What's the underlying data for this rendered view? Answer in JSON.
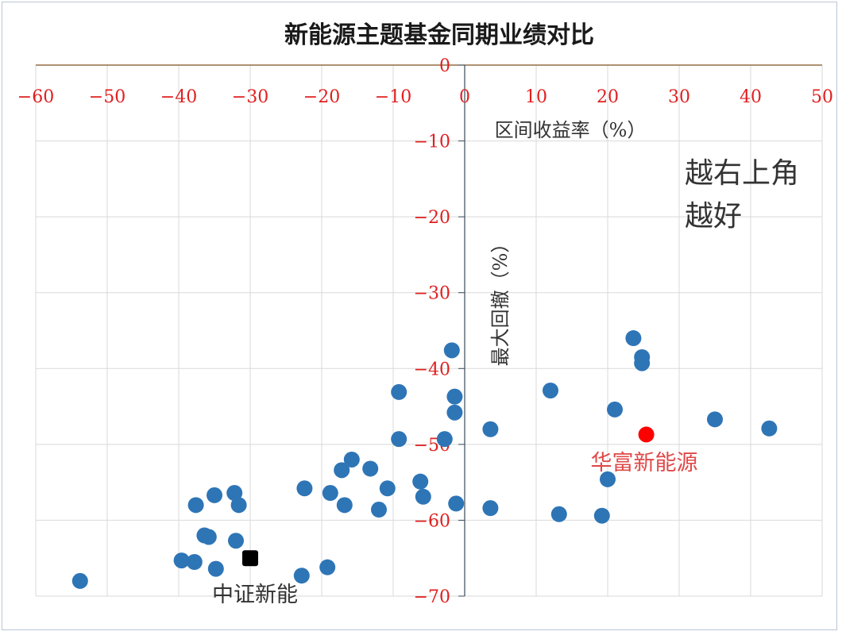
{
  "chart_data": {
    "type": "scatter",
    "title": "新能源主题基金同期业绩对比",
    "xlabel": "区间收益率（%）",
    "ylabel": "最大回撤（%）",
    "xlim": [
      -60,
      50
    ],
    "ylim": [
      -70,
      0
    ],
    "xticks": [
      -60,
      -50,
      -40,
      -30,
      -20,
      -10,
      0,
      10,
      20,
      30,
      40,
      50
    ],
    "yticks": [
      0,
      -10,
      -20,
      -30,
      -40,
      -50,
      -60,
      -70
    ],
    "grid": true,
    "annotation": "越右上角越好",
    "annotation_lines": [
      "越右上角",
      "越好"
    ],
    "colors": {
      "funds": "#2e75b6",
      "highlight": "#ff0000",
      "benchmark": "#000000",
      "tick_labels": "#e02020"
    },
    "series": [
      {
        "points": [
          [
            -53.8,
            -68.0
          ],
          [
            -39.6,
            -65.3
          ],
          [
            -37.8,
            -65.5
          ],
          [
            -37.6,
            -58.0
          ],
          [
            -36.4,
            -62.0
          ],
          [
            -35.8,
            -62.2
          ],
          [
            -35.0,
            -56.7
          ],
          [
            -34.8,
            -66.4
          ],
          [
            -32.2,
            -56.4
          ],
          [
            -32.0,
            -62.7
          ],
          [
            -31.6,
            -58.0
          ],
          [
            -22.8,
            -67.3
          ],
          [
            -22.4,
            -55.8
          ],
          [
            -19.2,
            -66.2
          ],
          [
            -18.8,
            -56.4
          ],
          [
            -17.2,
            -53.4
          ],
          [
            -16.8,
            -58.0
          ],
          [
            -15.8,
            -52.0
          ],
          [
            -13.2,
            -53.2
          ],
          [
            -12.0,
            -58.6
          ],
          [
            -10.8,
            -55.8
          ],
          [
            -9.2,
            -43.1
          ],
          [
            -9.2,
            -49.3
          ],
          [
            -6.2,
            -54.9
          ],
          [
            -5.8,
            -56.9
          ],
          [
            -2.8,
            -49.3
          ],
          [
            -1.8,
            -37.6
          ],
          [
            -1.4,
            -43.7
          ],
          [
            -1.4,
            -45.8
          ],
          [
            -1.2,
            -57.8
          ],
          [
            3.6,
            -48.0
          ],
          [
            3.6,
            -58.4
          ],
          [
            12.0,
            -42.9
          ],
          [
            13.2,
            -59.2
          ],
          [
            19.2,
            -59.4
          ],
          [
            20.0,
            -54.6
          ],
          [
            21.0,
            -45.4
          ],
          [
            23.6,
            -36.0
          ],
          [
            24.8,
            -38.5
          ],
          [
            24.8,
            -39.3
          ],
          [
            35.0,
            -46.7
          ],
          [
            42.6,
            -47.9
          ]
        ]
      },
      {
        "name": "华富新能源",
        "points": [
          [
            25.4,
            -48.7
          ]
        ]
      },
      {
        "name": "中证新能",
        "points": [
          [
            -30.0,
            -65.0
          ]
        ]
      }
    ]
  }
}
